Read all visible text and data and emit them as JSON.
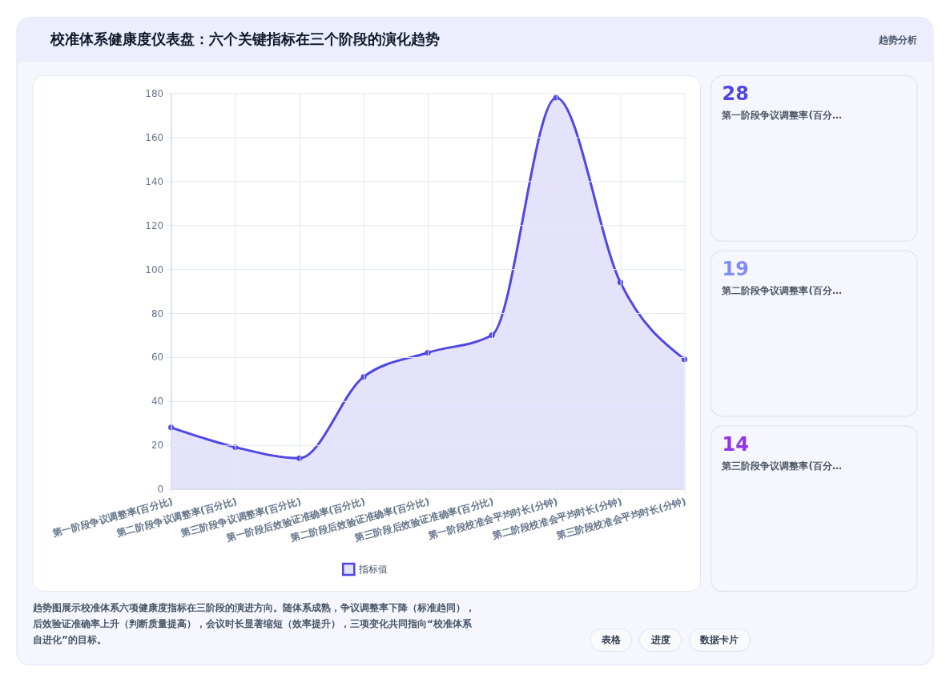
{
  "chart_data": [
    {
      "type": "area",
      "title": "校准体系健康度仪表盘：六个关键指标在三个阶段的演化趋势",
      "categories": [
        "第一阶段争议调整率(百分比)",
        "第二阶段争议调整率(百分比)",
        "第三阶段争议调整率(百分比)",
        "第一阶段后效验证准确率(百分比)",
        "第二阶段后效验证准确率(百分比)",
        "第三阶段后效验证准确率(百分比)",
        "第一阶段校准会平均时长(分钟)",
        "第二阶段校准会平均时长(分钟)",
        "第三阶段校准会平均时长(分钟)"
      ],
      "series": [
        {
          "name": "指标值",
          "color": "#4f46e5",
          "values": [
            28,
            19,
            14,
            51,
            62,
            70,
            178,
            94,
            59
          ]
        }
      ],
      "ylim": [
        0,
        180
      ],
      "yticks": [
        0,
        20,
        40,
        60,
        80,
        100,
        120,
        140,
        160,
        180
      ],
      "grid": true,
      "legend": "bottom",
      "marker": "circle",
      "line_style": "solid",
      "annotations": [
        "趋势图展示校准体系六项健康度指标在三阶段的演进方向。随体系成熟，争议调整率下降（标准趋同），后效验证准确率上升（判断质量提高），会议时长显著缩短（效率提升），三项变化共同指向“校准体系自进化”的目标。",
        "趋势分析",
        "表格",
        "进度",
        "数据卡片"
      ]
    },
    {
      "type": "other",
      "categories": [
        "第一阶段争议调整率(百分…",
        "第二阶段争议调整率(百分…",
        "第三阶段争议调整率(百分…"
      ],
      "values": [
        28,
        19,
        14
      ],
      "colors": [
        "#4f46e5",
        "#818cf8",
        "#9333ea"
      ],
      "data_labels": true
    }
  ]
}
